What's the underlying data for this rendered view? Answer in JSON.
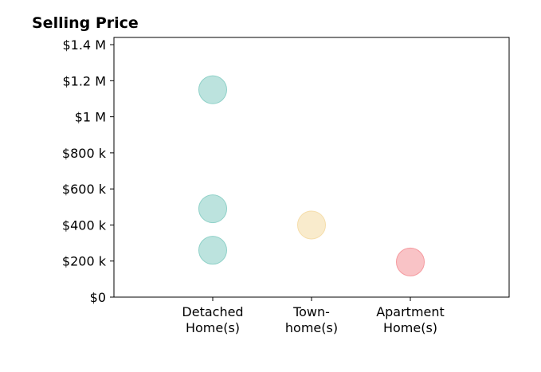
{
  "chart_data": {
    "type": "scatter",
    "title": "Selling Price",
    "xlabel": "",
    "ylabel": "",
    "categories": [
      [
        "Detached",
        "Home(s)"
      ],
      [
        "Town-",
        "home(s)"
      ],
      [
        "Apartment",
        "Home(s)"
      ]
    ],
    "ylim": [
      0,
      1440000
    ],
    "y_ticks": [
      {
        "value": 0,
        "label": "$0"
      },
      {
        "value": 200000,
        "label": "$200 k"
      },
      {
        "value": 400000,
        "label": "$400 k"
      },
      {
        "value": 600000,
        "label": "$600 k"
      },
      {
        "value": 800000,
        "label": "$800 k"
      },
      {
        "value": 1000000,
        "label": "$1 M"
      },
      {
        "value": 1200000,
        "label": "$1.2 M"
      },
      {
        "value": 1400000,
        "label": "$1.4 M"
      }
    ],
    "points": [
      {
        "category": 0,
        "y": 1150000,
        "color": "#8fd1c8"
      },
      {
        "category": 0,
        "y": 490000,
        "color": "#8fd1c8"
      },
      {
        "category": 0,
        "y": 260000,
        "color": "#8fd1c8"
      },
      {
        "category": 1,
        "y": 400000,
        "color": "#f5ddaa"
      },
      {
        "category": 2,
        "y": 195000,
        "color": "#f59ba0"
      }
    ],
    "grid": false,
    "legend": "none"
  }
}
